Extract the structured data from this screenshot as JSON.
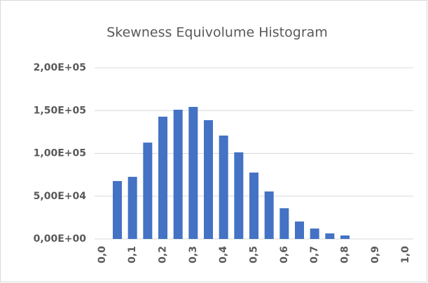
{
  "chart_data": {
    "type": "bar",
    "title": "Skewness Equivolume Histogram",
    "categories": [
      "0,0",
      null,
      "0,1",
      null,
      "0,2",
      null,
      "0,3",
      null,
      "0,4",
      null,
      "0,5",
      null,
      "0,6",
      null,
      "0,7",
      null,
      "0,8",
      null,
      "0,9",
      null,
      "1,0"
    ],
    "values": [
      0,
      67700,
      72600,
      112600,
      142900,
      151000,
      154300,
      138800,
      120800,
      101200,
      77600,
      55500,
      35900,
      20400,
      12200,
      6500,
      4100,
      0,
      0,
      0,
      0
    ],
    "color": "#4472c4",
    "ylim": [
      0,
      200000
    ],
    "yticks": [
      {
        "value": 0,
        "label": "0,00E+00"
      },
      {
        "value": 50000,
        "label": "5,00E+04"
      },
      {
        "value": 100000,
        "label": "1,00E+05"
      },
      {
        "value": 150000,
        "label": "1,50E+05"
      },
      {
        "value": 200000,
        "label": "2,00E+05"
      }
    ],
    "grid": true
  }
}
